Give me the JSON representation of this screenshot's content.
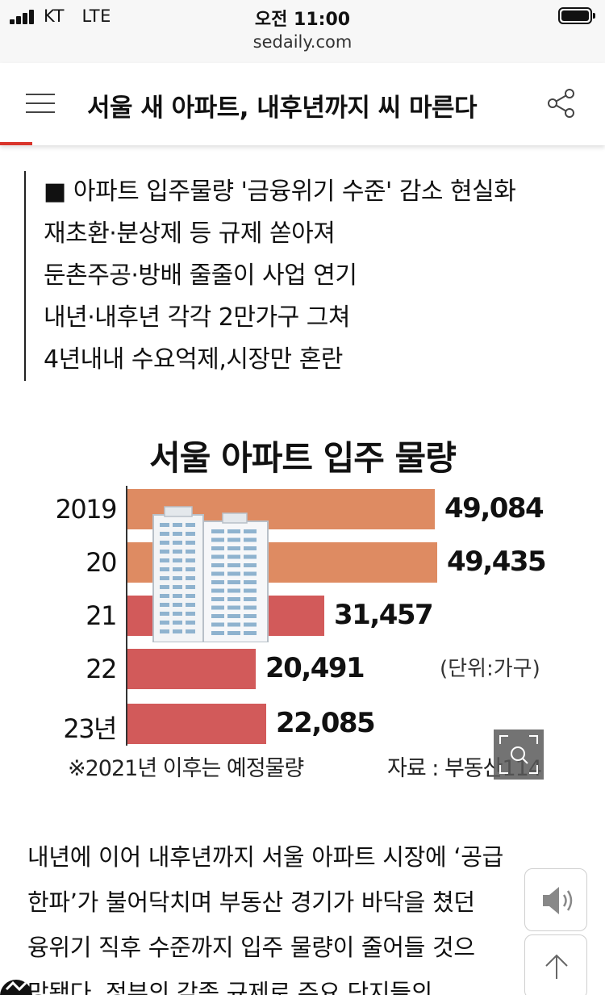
{
  "status_bar": {
    "carrier": "KT   LTE",
    "time": "오전 11:00",
    "url": "sedaily.com"
  },
  "header": {
    "title": "서울 새 아파트, 내후년까지 씨 마른다",
    "menu_icon": "hamburger-menu-icon",
    "share_icon": "share-icon",
    "accent_color": "#d9342b"
  },
  "subheadline": {
    "lines": [
      "■ 아파트 입주물량 '금융위기 수준' 감소 현실화",
      "재초환·분상제 등 규제 쏟아져",
      "둔촌주공·방배 줄줄이 사업 연기",
      "내년·내후년 각각 2만가구 그쳐",
      "4년내내 수요억제,시장만 혼란"
    ]
  },
  "chart_data": {
    "type": "bar",
    "orientation": "horizontal",
    "title": "서울 아파트 입주 물량",
    "categories": [
      "2019",
      "20",
      "21",
      "22",
      "23년"
    ],
    "values": [
      49084,
      49435,
      31457,
      20491,
      22085
    ],
    "value_labels": [
      "49,084",
      "49,435",
      "31,457",
      "20,491",
      "22,085"
    ],
    "bar_colors": [
      "#de8b62",
      "#de8b62",
      "#d25a5a",
      "#d25a5a",
      "#d25a5a"
    ],
    "xlim": [
      0,
      54000
    ],
    "unit_label": "(단위:가구)",
    "note": "※2021년 이후는 예정물량",
    "source": "자료 : 부동산114",
    "grid": false
  },
  "article": {
    "lines": [
      "내년에 이어 내후년까지 서울 아파트 시장에 ‘공급",
      "한파’가 불어닥치며 부동산 경기가 바닥을 쳤던",
      "융위기 직후 수준까지 입주 물량이 줄어들 것으",
      "망됐다. 정부의 각종 규제로 주요 단지들의"
    ]
  },
  "floating": {
    "sound_icon": "speaker-icon",
    "top_icon": "arrow-up-icon",
    "zoom_icon": "zoom-icon"
  }
}
